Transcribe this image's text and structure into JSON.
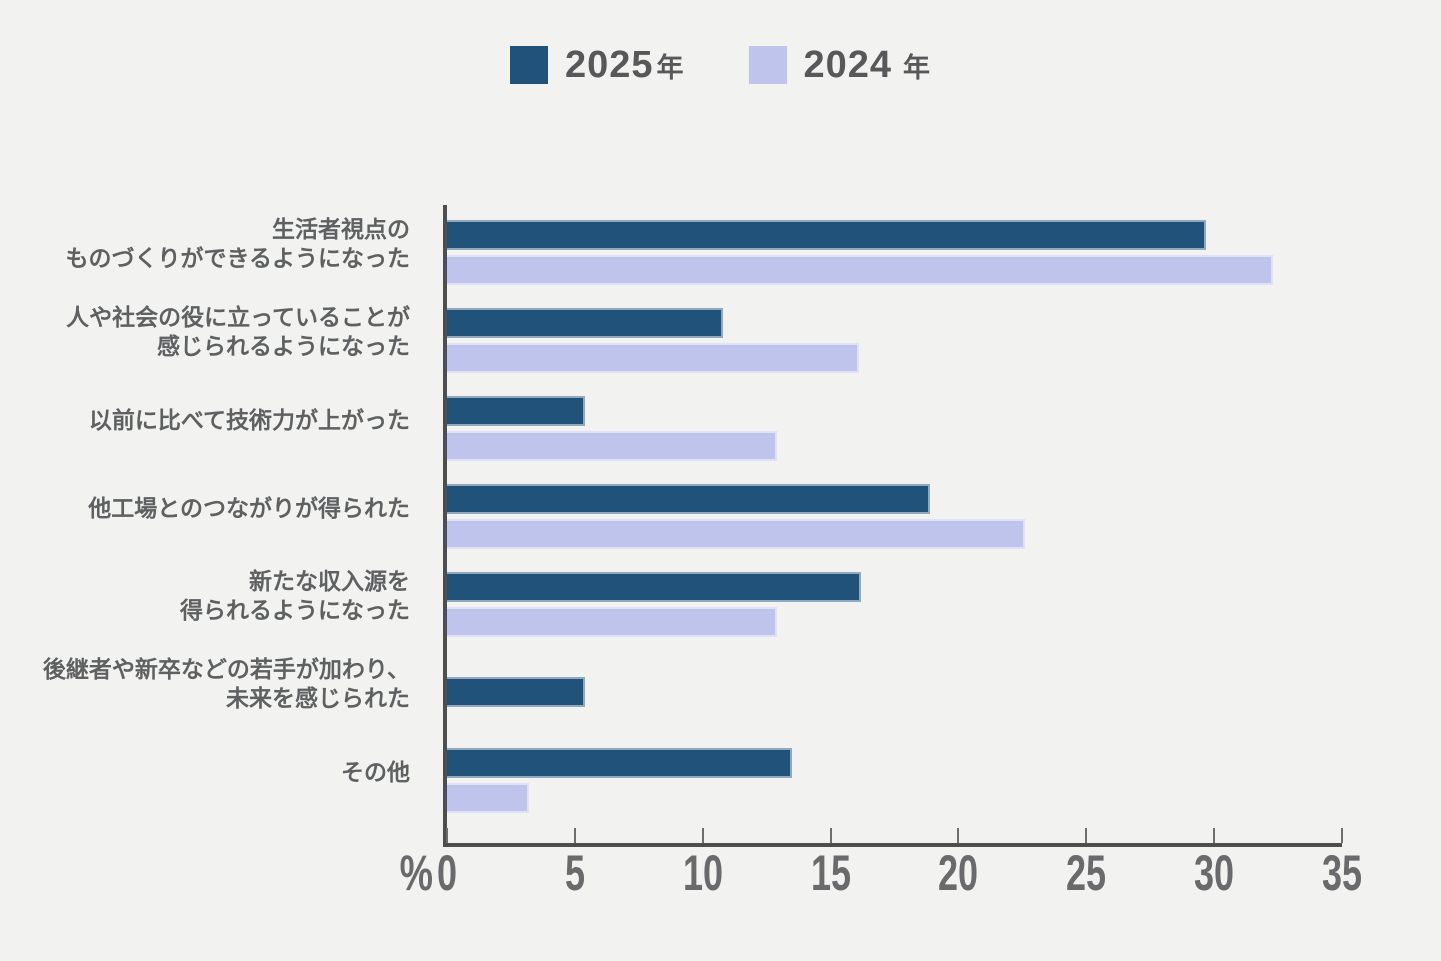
{
  "page": {
    "background": "#F2F3F1"
  },
  "legend": {
    "items": [
      {
        "year": "2025",
        "suffix": "年",
        "color": "#21527A"
      },
      {
        "year": "2024",
        "suffix": "年",
        "color": "#BEC4EB"
      }
    ]
  },
  "axis": {
    "unit_label": "%"
  },
  "chart_data": {
    "type": "bar",
    "orientation": "horizontal",
    "title": "",
    "categories": [
      "生活者視点の\nものづくりができるようになった",
      "人や社会の役に立っていることが\n感じられるようになった",
      "以前に比べて技術力が上がった",
      "他工場とのつながりが得られた",
      "新たな収入源を\n得られるようになった",
      "後継者や新卒などの若手が加わり、\n未来を感じられた",
      "その他"
    ],
    "series": [
      {
        "name": "2025年",
        "color": "#21527A",
        "values": [
          29.7,
          10.8,
          5.4,
          18.9,
          16.2,
          5.4,
          13.5
        ]
      },
      {
        "name": "2024年",
        "color": "#BEC4EB",
        "values": [
          32.3,
          16.1,
          12.9,
          22.6,
          12.9,
          0,
          3.2
        ]
      }
    ],
    "xlabel": "%",
    "xlim": [
      0,
      35
    ],
    "xticks": [
      0,
      5,
      10,
      15,
      20,
      25,
      30,
      35
    ],
    "grid": false,
    "legend_position": "top"
  },
  "colors": {
    "axis": "#4E4E4E",
    "tick": "#6E6E6E",
    "tick_label": "#6A6A6C",
    "category_label": "#5E6062",
    "legend_text": "#58585A"
  }
}
